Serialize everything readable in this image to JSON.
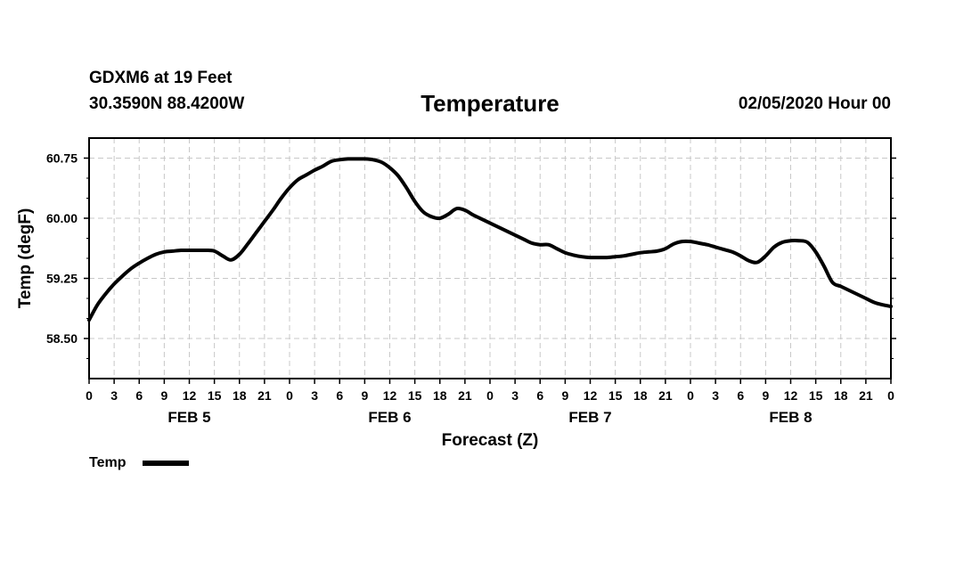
{
  "header": {
    "station": "GDXM6 at 19 Feet",
    "coords": "30.3590N 88.4200W",
    "title": "Temperature",
    "issued": "02/05/2020 Hour 00"
  },
  "chart_data": {
    "type": "line",
    "title": "Temperature",
    "xlabel": "Forecast (Z)",
    "ylabel": "Temp (degF)",
    "ylim": [
      58.0,
      61.0
    ],
    "yticks": [
      "60.75",
      "60.00",
      "59.25",
      "58.50"
    ],
    "ytick_values": [
      60.75,
      60.0,
      59.25,
      58.5
    ],
    "xlim_hours": [
      0,
      96
    ],
    "xtick_labels": [
      "0",
      "3",
      "6",
      "9",
      "12",
      "15",
      "18",
      "21",
      "0",
      "3",
      "6",
      "9",
      "12",
      "15",
      "18",
      "21",
      "0",
      "3",
      "6",
      "9",
      "12",
      "15",
      "18",
      "21",
      "0",
      "3",
      "6",
      "9",
      "12",
      "15",
      "18",
      "21",
      "0"
    ],
    "day_labels": [
      {
        "label": "FEB 5",
        "hour": 12
      },
      {
        "label": "FEB 6",
        "hour": 36
      },
      {
        "label": "FEB 7",
        "hour": 60
      },
      {
        "label": "FEB 8",
        "hour": 84
      }
    ],
    "grid": true,
    "legend": {
      "label": "Temp",
      "placement": "bottom-left"
    },
    "series": [
      {
        "name": "Temp",
        "x_hours": [
          0,
          1,
          2,
          3,
          4,
          5,
          6,
          7,
          8,
          9,
          10,
          11,
          12,
          13,
          14,
          15,
          16,
          17,
          18,
          19,
          20,
          21,
          22,
          23,
          24,
          25,
          26,
          27,
          28,
          29,
          30,
          31,
          32,
          33,
          34,
          35,
          36,
          37,
          38,
          39,
          40,
          41,
          42,
          43,
          44,
          45,
          46,
          47,
          48,
          49,
          50,
          51,
          52,
          53,
          54,
          55,
          56,
          57,
          58,
          59,
          60,
          61,
          62,
          63,
          64,
          65,
          66,
          67,
          68,
          69,
          70,
          71,
          72,
          73,
          74,
          75,
          76,
          77,
          78,
          79,
          80,
          81,
          82,
          83,
          84,
          85,
          86,
          87,
          88,
          89,
          90,
          91,
          92,
          93,
          94,
          95,
          96
        ],
        "values": [
          58.73,
          58.92,
          59.06,
          59.18,
          59.28,
          59.37,
          59.44,
          59.5,
          59.55,
          59.58,
          59.59,
          59.6,
          59.6,
          59.6,
          59.6,
          59.59,
          59.53,
          59.48,
          59.55,
          59.68,
          59.82,
          59.96,
          60.1,
          60.25,
          60.38,
          60.48,
          60.54,
          60.6,
          60.65,
          60.71,
          60.73,
          60.74,
          60.74,
          60.74,
          60.73,
          60.7,
          60.63,
          60.53,
          60.38,
          60.21,
          60.08,
          60.02,
          60.0,
          60.05,
          60.12,
          60.1,
          60.04,
          59.99,
          59.94,
          59.89,
          59.84,
          59.79,
          59.74,
          59.69,
          59.67,
          59.67,
          59.62,
          59.57,
          59.54,
          59.52,
          59.51,
          59.51,
          59.51,
          59.52,
          59.53,
          59.55,
          59.57,
          59.58,
          59.59,
          59.62,
          59.68,
          59.71,
          59.71,
          59.69,
          59.67,
          59.64,
          59.61,
          59.58,
          59.53,
          59.47,
          59.45,
          59.53,
          59.64,
          59.7,
          59.72,
          59.72,
          59.7,
          59.58,
          59.4,
          59.2,
          59.15,
          59.1,
          59.05,
          59.0,
          58.95,
          58.92,
          58.9
        ]
      }
    ]
  }
}
